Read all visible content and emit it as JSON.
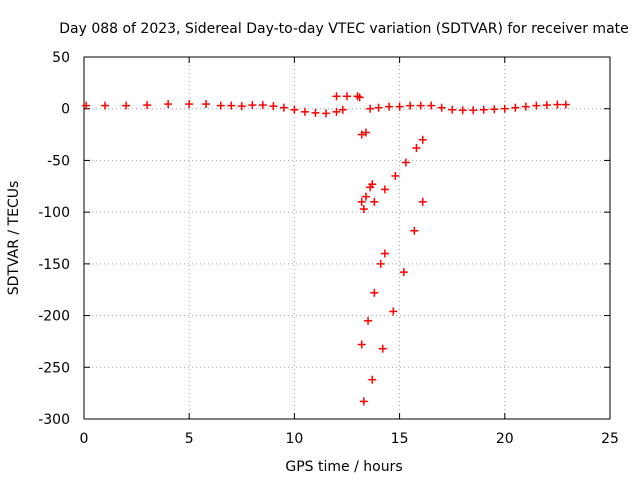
{
  "chart_data": {
    "type": "scatter",
    "title": "Day 088 of 2023, Sidereal Day-to-day VTEC variation (SDTVAR) for receiver mate",
    "xlabel": "GPS time / hours",
    "ylabel": "SDTVAR / TECUs",
    "xlim": [
      0,
      25
    ],
    "ylim": [
      -300,
      50
    ],
    "xticks": [
      "0",
      "5",
      "10",
      "15",
      "20",
      "25"
    ],
    "yticks": [
      "50",
      "0",
      "-50",
      "-100",
      "-150",
      "-200",
      "-250",
      "-300"
    ],
    "xtick_values": [
      0,
      5,
      10,
      15,
      20,
      25
    ],
    "ytick_values": [
      50,
      0,
      -50,
      -100,
      -150,
      -200,
      -250,
      -300
    ],
    "grid": true,
    "color": "#ff0000",
    "series": [
      {
        "points": [
          [
            0.1,
            3
          ],
          [
            1.0,
            3
          ],
          [
            2.0,
            3
          ],
          [
            3.0,
            3.5
          ],
          [
            4.0,
            4.5
          ],
          [
            5.0,
            4.5
          ],
          [
            5.8,
            4.5
          ],
          [
            6.5,
            3
          ],
          [
            7.0,
            3
          ],
          [
            7.5,
            2.5
          ],
          [
            8.0,
            3.5
          ],
          [
            8.5,
            3.5
          ],
          [
            9.0,
            2.5
          ],
          [
            9.5,
            1
          ],
          [
            10.0,
            -1
          ],
          [
            10.5,
            -3
          ],
          [
            11.0,
            -4
          ],
          [
            11.5,
            -4.5
          ],
          [
            12.0,
            -3
          ],
          [
            12.3,
            -1
          ],
          [
            12.0,
            12
          ],
          [
            12.5,
            12
          ],
          [
            13.0,
            12
          ],
          [
            13.1,
            11
          ],
          [
            13.2,
            -25
          ],
          [
            13.4,
            -23
          ],
          [
            13.6,
            0
          ],
          [
            14.0,
            1
          ],
          [
            14.5,
            2
          ],
          [
            15.0,
            2
          ],
          [
            15.5,
            3
          ],
          [
            16.0,
            3
          ],
          [
            16.5,
            3
          ],
          [
            17.0,
            1
          ],
          [
            17.5,
            -1
          ],
          [
            18.0,
            -1.5
          ],
          [
            18.5,
            -1.5
          ],
          [
            19.0,
            -1
          ],
          [
            19.5,
            -0.5
          ],
          [
            20.0,
            0
          ],
          [
            20.5,
            1
          ],
          [
            21.0,
            2
          ],
          [
            21.5,
            3
          ],
          [
            22.0,
            3.5
          ],
          [
            22.5,
            4
          ],
          [
            22.9,
            4
          ],
          [
            13.2,
            -90
          ],
          [
            13.4,
            -85
          ],
          [
            13.6,
            -76
          ],
          [
            13.7,
            -73
          ],
          [
            13.3,
            -97
          ],
          [
            13.8,
            -90
          ],
          [
            14.3,
            -78
          ],
          [
            14.8,
            -65
          ],
          [
            15.3,
            -52
          ],
          [
            15.8,
            -38
          ],
          [
            16.1,
            -30
          ],
          [
            13.2,
            -228
          ],
          [
            13.5,
            -205
          ],
          [
            13.8,
            -178
          ],
          [
            14.1,
            -150
          ],
          [
            14.3,
            -140
          ],
          [
            13.3,
            -283
          ],
          [
            13.7,
            -262
          ],
          [
            14.2,
            -232
          ],
          [
            14.7,
            -196
          ],
          [
            15.2,
            -158
          ],
          [
            15.7,
            -118
          ],
          [
            16.1,
            -90
          ]
        ]
      }
    ]
  }
}
